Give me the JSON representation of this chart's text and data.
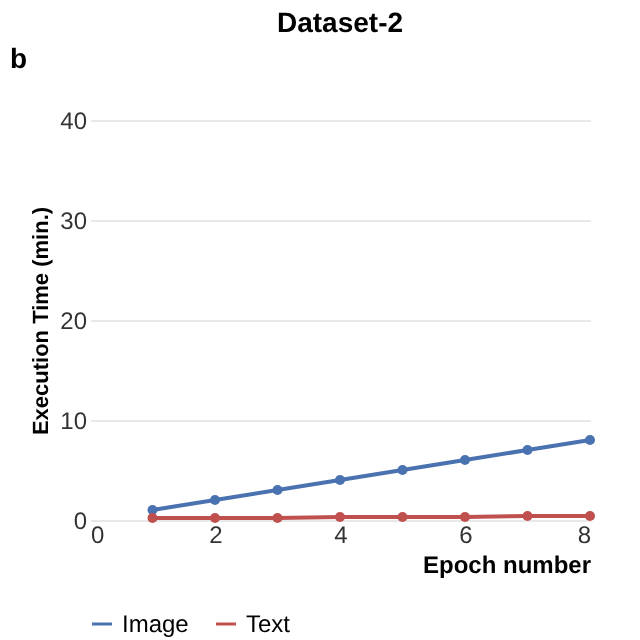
{
  "chart_data": {
    "type": "line",
    "title": "Dataset-2",
    "xlabel": "Epoch number",
    "ylabel": "Execution Time (min.)",
    "annotations": [
      "b"
    ],
    "x": [
      1,
      2,
      3,
      4,
      5,
      6,
      7,
      8
    ],
    "series": [
      {
        "name": "Image",
        "color": "#4a72b0",
        "values": [
          1,
          2,
          3,
          4,
          5,
          6,
          7,
          8
        ]
      },
      {
        "name": "Text",
        "color": "#c0504d",
        "values": [
          0.2,
          0.2,
          0.2,
          0.3,
          0.3,
          0.3,
          0.4,
          0.4
        ]
      }
    ],
    "xlim": [
      0,
      8
    ],
    "xticks": [
      0,
      2,
      4,
      6,
      8
    ],
    "ylim": [
      0,
      40
    ],
    "yticks": [
      0,
      10,
      20,
      30,
      40
    ],
    "grid": "y",
    "legend": "bottom",
    "marker": "circle",
    "line_style": "solid"
  }
}
